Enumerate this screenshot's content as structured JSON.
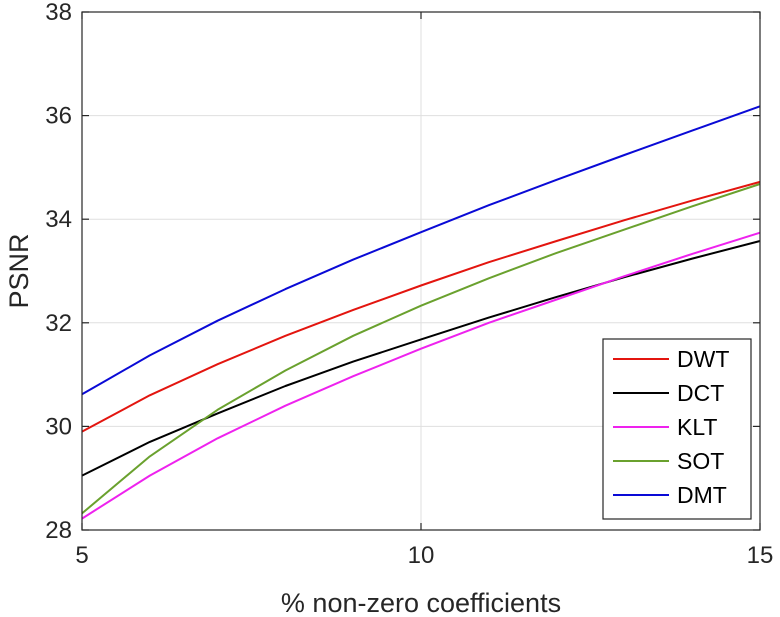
{
  "chart_data": {
    "type": "line",
    "xlabel": "% non-zero coefficients",
    "ylabel": "PSNR",
    "xlim": [
      5,
      15
    ],
    "ylim": [
      28,
      38
    ],
    "xticks": [
      5,
      10,
      15
    ],
    "yticks": [
      28,
      30,
      32,
      34,
      36,
      38
    ],
    "grid": true,
    "legend_position": "bottom-right",
    "x": [
      5,
      6,
      7,
      8,
      9,
      10,
      11,
      12,
      13,
      14,
      15
    ],
    "series": [
      {
        "name": "DWT",
        "color": "#e3150f",
        "values": [
          29.9,
          30.6,
          31.2,
          31.75,
          32.25,
          32.72,
          33.17,
          33.58,
          33.98,
          34.36,
          34.72
        ]
      },
      {
        "name": "DCT",
        "color": "#000000",
        "values": [
          29.05,
          29.7,
          30.25,
          30.78,
          31.25,
          31.68,
          32.1,
          32.5,
          32.88,
          33.24,
          33.58
        ]
      },
      {
        "name": "KLT",
        "color": "#ee22ee",
        "values": [
          28.22,
          29.05,
          29.77,
          30.4,
          30.97,
          31.5,
          32.0,
          32.45,
          32.9,
          33.33,
          33.74
        ]
      },
      {
        "name": "SOT",
        "color": "#6aa12e",
        "values": [
          28.32,
          29.42,
          30.32,
          31.08,
          31.75,
          32.33,
          32.86,
          33.35,
          33.8,
          34.25,
          34.68
        ]
      },
      {
        "name": "DMT",
        "color": "#0a0ad6",
        "values": [
          30.62,
          31.37,
          32.04,
          32.65,
          33.22,
          33.75,
          34.27,
          34.76,
          35.24,
          35.71,
          36.18
        ]
      }
    ]
  }
}
